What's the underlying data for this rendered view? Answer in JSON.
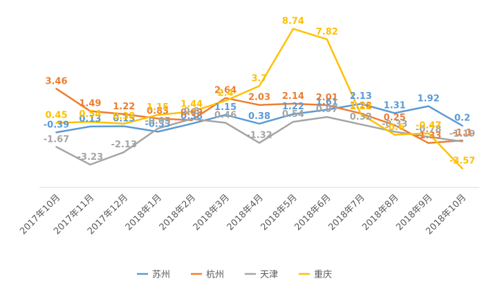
{
  "chart_data": {
    "type": "line",
    "title": "",
    "xlabel": "",
    "ylabel": "",
    "categories": [
      "2017年10月",
      "2017年11月",
      "2017年12月",
      "2018年1月",
      "2018年2月",
      "2018年3月",
      "2018年4月",
      "2018年5月",
      "2018年6月",
      "2018年7月",
      "2018年8月",
      "2018年9月",
      "2018年10月"
    ],
    "ylim": [
      -6,
      10
    ],
    "grid": false,
    "legend": "bottom",
    "series": [
      {
        "name": "苏州",
        "color": "#5B9BD5",
        "values": [
          -0.39,
          0.13,
          0.15,
          -0.33,
          0.38,
          1.15,
          0.38,
          1.22,
          1.61,
          2.13,
          1.31,
          1.92,
          0.2
        ],
        "labels": [
          "-0.39",
          "0.13",
          "0.15",
          "-0.33",
          "0.38",
          "1.15",
          "0.38",
          "1.22",
          "1.61",
          "2.13",
          "1.31",
          "1.92",
          "0.2"
        ]
      },
      {
        "name": "杭州",
        "color": "#ED7D31",
        "values": [
          3.46,
          1.49,
          1.22,
          0.83,
          0.69,
          2.64,
          2.03,
          2.14,
          2.01,
          1.28,
          0.25,
          -1.33,
          -1.1
        ],
        "labels": [
          "3.46",
          "1.49",
          "1.22",
          "0.83",
          "0.69",
          "2.64",
          "2.03",
          "2.14",
          "2.01",
          "1.28",
          "0.25",
          "-1.33",
          "-1.1"
        ]
      },
      {
        "name": "天津",
        "color": "#A5A5A5",
        "values": [
          -1.67,
          -3.23,
          -2.13,
          -0.05,
          0.8,
          0.46,
          -1.32,
          0.54,
          0.97,
          0.32,
          -0.33,
          -0.78,
          -1.19
        ],
        "labels": [
          "-1.67",
          "-3.23",
          "-2.13",
          "-0.05",
          "0.8",
          "0.46",
          "-1.32",
          "0.54",
          "0.97",
          "0.32",
          "-0.33",
          "-0.78",
          "-1.19"
        ]
      },
      {
        "name": "重庆",
        "color": "#FFC000",
        "values": [
          0.45,
          0.54,
          0.38,
          1.15,
          1.44,
          2.4,
          3.7,
          8.74,
          7.82,
          1.22,
          -0.6,
          -0.47,
          -3.57
        ],
        "labels": [
          "0.45",
          "0.54",
          "0.38",
          "1.15",
          "1.44",
          "2.4",
          "3.7",
          "8.74",
          "7.82",
          "1.22",
          "-0.6",
          "-0.47",
          "-3.57"
        ]
      }
    ]
  }
}
